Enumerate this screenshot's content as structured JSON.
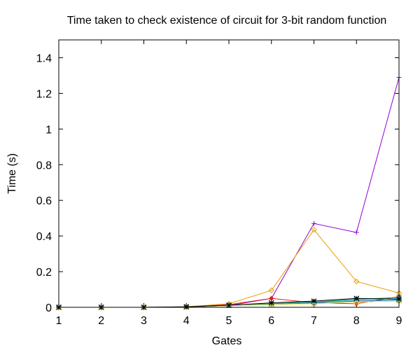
{
  "chart_data": {
    "type": "line",
    "title": "Time taken to check existence of circuit for 3-bit random function",
    "xlabel": "Gates",
    "ylabel": "Time (s)",
    "xlim": [
      1,
      9
    ],
    "ylim": [
      0,
      1.5
    ],
    "x_ticks": [
      "1",
      "2",
      "3",
      "4",
      "5",
      "6",
      "7",
      "8",
      "9"
    ],
    "y_ticks": [
      "0",
      "0.2",
      "0.4",
      "0.6",
      "0.8",
      "1",
      "1.2",
      "1.4"
    ],
    "grid": false,
    "legend": "none",
    "x": [
      1,
      2,
      3,
      4,
      5,
      6,
      7,
      8,
      9
    ],
    "series": [
      {
        "color": "#9400d3",
        "marker": "plus",
        "values": [
          0.0,
          0.0,
          0.0,
          0.002,
          0.01,
          0.05,
          0.47,
          0.42,
          1.29
        ]
      },
      {
        "color": "#e69f00",
        "marker": "diamond",
        "values": [
          0.0,
          0.0,
          0.0,
          0.003,
          0.02,
          0.095,
          0.435,
          0.145,
          0.08
        ]
      },
      {
        "color": "#56b4e9",
        "marker": "triangle",
        "values": [
          0.0,
          0.0,
          0.0,
          0.002,
          0.01,
          0.02,
          0.03,
          0.04,
          0.05
        ]
      },
      {
        "color": "#e51e10",
        "marker": "circle",
        "values": [
          0.0,
          0.0,
          0.0,
          0.002,
          0.015,
          0.05,
          0.025,
          0.02,
          0.06
        ]
      },
      {
        "color": "#009e73",
        "marker": "x",
        "values": [
          0.0,
          0.0,
          0.0,
          0.002,
          0.01,
          0.02,
          0.03,
          0.045,
          0.055
        ]
      },
      {
        "color": "#0072b2",
        "marker": "square",
        "values": [
          0.0,
          0.0,
          0.0,
          0.002,
          0.01,
          0.015,
          0.025,
          0.035,
          0.04
        ]
      },
      {
        "color": "#f0e442",
        "marker": "triangle",
        "values": [
          0.0,
          0.0,
          0.0,
          0.002,
          0.01,
          0.015,
          0.02,
          0.03,
          0.035
        ]
      },
      {
        "color": "#000000",
        "marker": "star",
        "values": [
          0.0,
          0.0,
          0.0,
          0.003,
          0.012,
          0.025,
          0.035,
          0.05,
          0.045
        ]
      }
    ]
  }
}
